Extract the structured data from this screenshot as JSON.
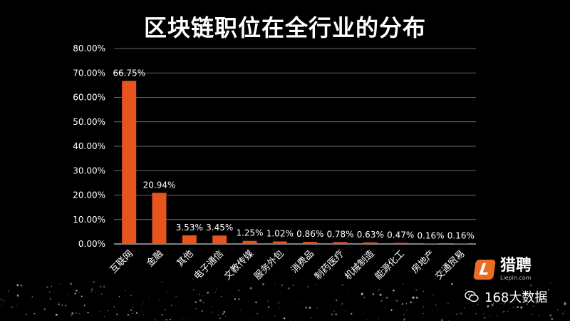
{
  "title": "区块链职位在全行业的分布",
  "chart_data": {
    "type": "bar",
    "title": "区块链职位在全行业的分布",
    "categories": [
      "互联网",
      "金融",
      "其他",
      "电子通信",
      "文教传媒",
      "服务外包",
      "消费品",
      "制药医疗",
      "机械制造",
      "能源化工",
      "房地产",
      "交通贸易"
    ],
    "values": [
      66.75,
      20.94,
      3.53,
      3.45,
      1.25,
      1.02,
      0.86,
      0.78,
      0.63,
      0.47,
      0.16,
      0.16
    ],
    "data_labels": [
      "66.75%",
      "20.94%",
      "3.53%",
      "3.45%",
      "1.25%",
      "1.02%",
      "0.86%",
      "0.78%",
      "0.63%",
      "0.47%",
      "0.16%",
      "0.16%"
    ],
    "yticks": [
      "0.00%",
      "10.00%",
      "20.00%",
      "30.00%",
      "40.00%",
      "50.00%",
      "60.00%",
      "70.00%",
      "80.00%"
    ],
    "ylim": [
      0,
      80
    ],
    "xlabel": "",
    "ylabel": "",
    "grid": true,
    "bar_color": "#e8541e"
  },
  "logo": {
    "badge": "L",
    "name": "猎聘",
    "url": "Liepin.com"
  },
  "wechat": {
    "name": "168大数据"
  }
}
